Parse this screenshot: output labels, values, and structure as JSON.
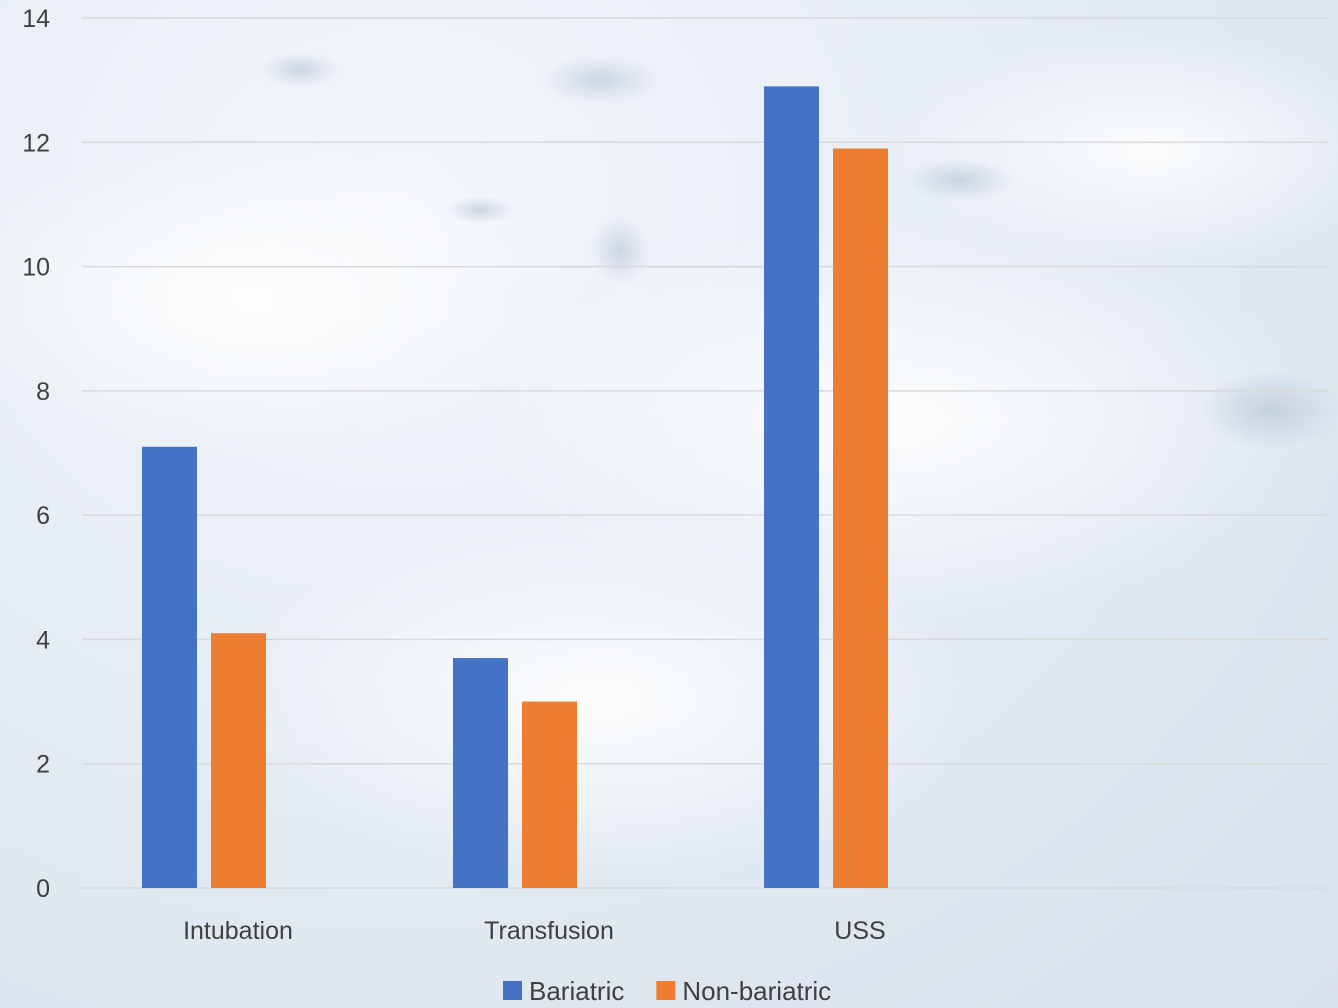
{
  "chart_data": {
    "type": "bar",
    "title": "",
    "xlabel": "",
    "ylabel": "",
    "categories": [
      "Intubation",
      "Transfusion",
      "USS"
    ],
    "series": [
      {
        "name": "Bariatric",
        "color": "#4472C4",
        "values": [
          7.1,
          3.7,
          12.9
        ]
      },
      {
        "name": "Non-bariatric",
        "color": "#ED7D31",
        "values": [
          4.1,
          3.0,
          11.9
        ]
      }
    ],
    "ylim": [
      0,
      14
    ],
    "yticks": [
      0,
      2,
      4,
      6,
      8,
      10,
      12,
      14
    ],
    "grid": true,
    "legend_position": "bottom"
  }
}
